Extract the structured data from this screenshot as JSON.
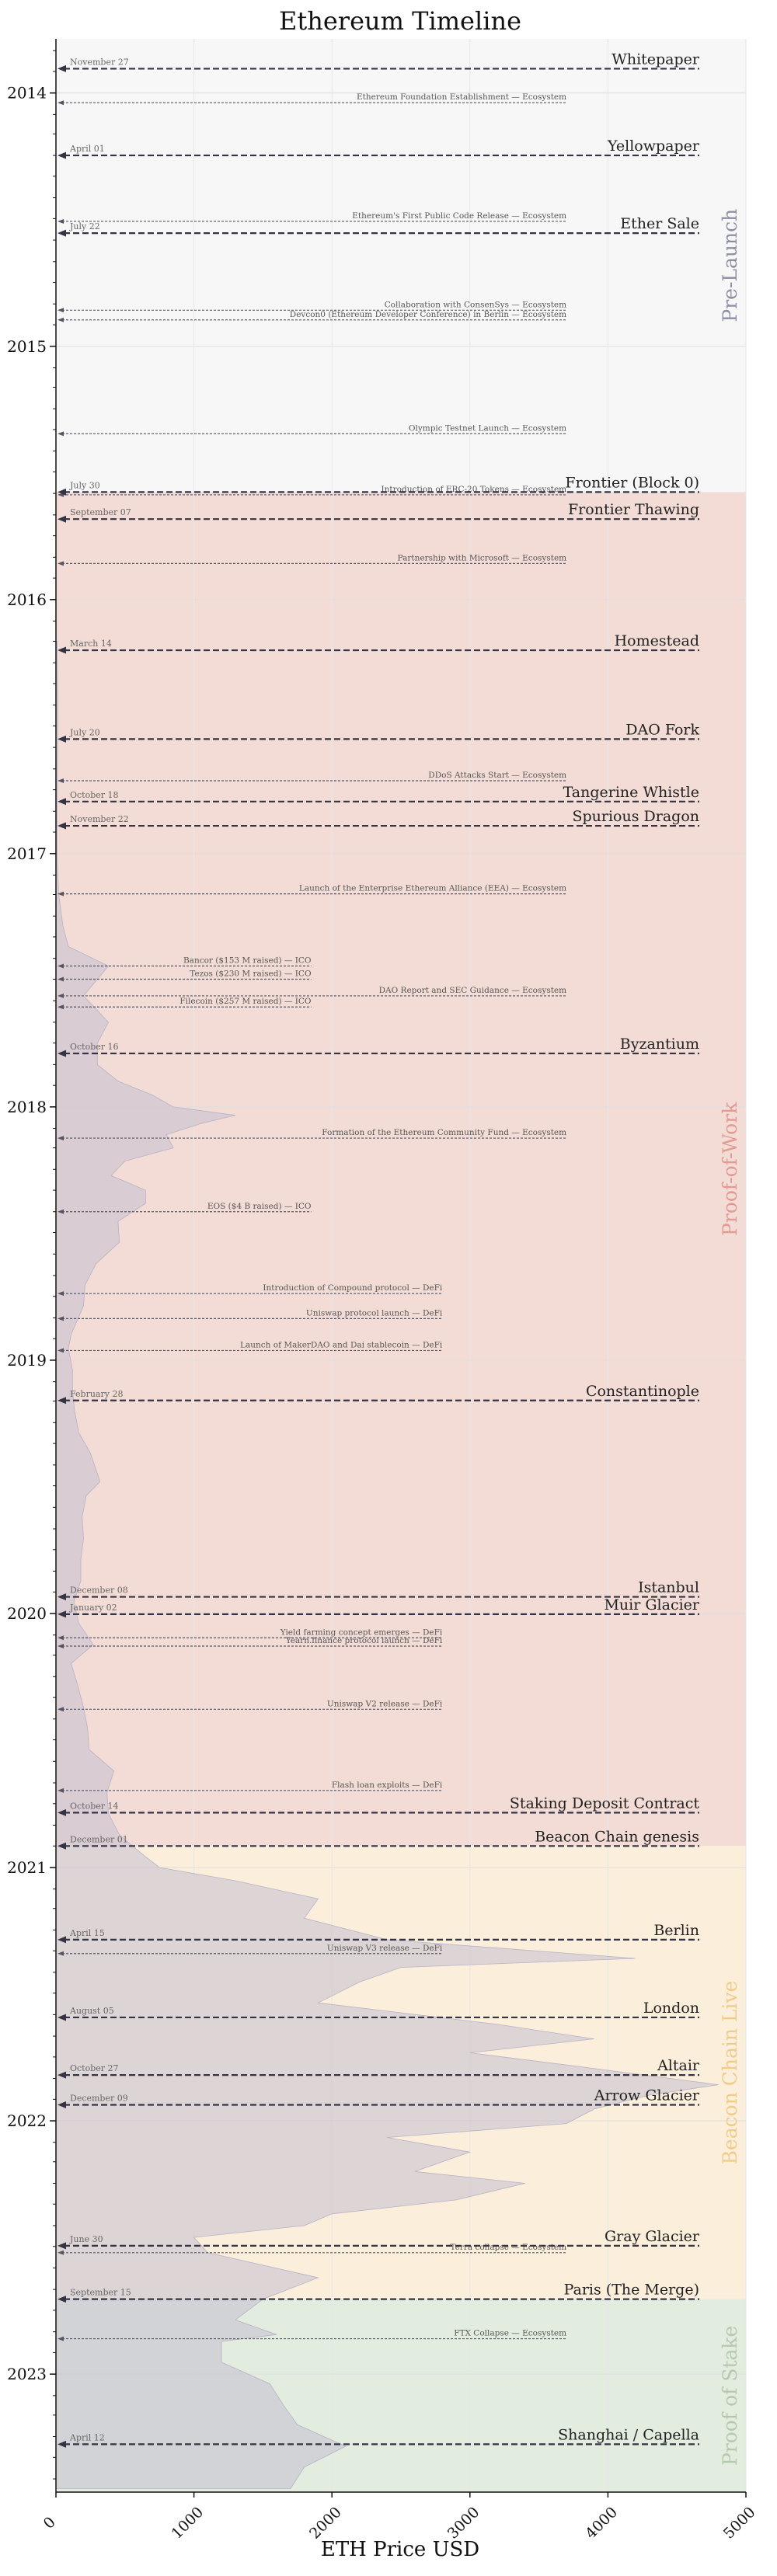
{
  "chart_data": {
    "type": "area",
    "title": "Ethereum Timeline",
    "xlabel": "ETH Price USD",
    "ylabel": "",
    "orientation": "horizontal-time-vertical",
    "xlim": [
      0,
      5000
    ],
    "ylim": [
      "2013-10-15",
      "2023-06-20"
    ],
    "x_ticks": [
      "0",
      "1000",
      "2000",
      "3000",
      "4000",
      "5000"
    ],
    "y_ticks": [
      "2014",
      "2015",
      "2016",
      "2017",
      "2018",
      "2019",
      "2020",
      "2021",
      "2022",
      "2023"
    ],
    "grid": true,
    "colors": {
      "pre_launch": "#f7f7f7",
      "proof_of_work": "#f2dcd5",
      "beacon_chain": "#fbeedb",
      "proof_of_stake": "#e2ecdf",
      "label_pre_launch": "#8e8ea4",
      "label_pow": "#e29a92",
      "label_beacon": "#f1cb8a",
      "label_pos": "#b6c9ae",
      "price_fill": "#c5c0d0",
      "line": "#333344"
    },
    "phases": [
      {
        "label": "Pre-Launch",
        "start": "2013-10-15",
        "end": "2015-07-30"
      },
      {
        "label": "Proof-of-Work",
        "start": "2015-07-30",
        "end": "2020-12-01"
      },
      {
        "label": "Beacon Chain Live",
        "start": "2020-12-01",
        "end": "2022-09-15"
      },
      {
        "label": "Proof of Stake",
        "start": "2022-09-15",
        "end": "2023-06-20"
      }
    ],
    "major_events": [
      {
        "label": "Whitepaper",
        "date_label": "November 27",
        "date": "2013-11-27"
      },
      {
        "label": "Yellowpaper",
        "date_label": "April 01",
        "date": "2014-04-01"
      },
      {
        "label": "Ether Sale",
        "date_label": "July 22",
        "date": "2014-07-22"
      },
      {
        "label": "Frontier (Block 0)",
        "date_label": "July 30",
        "date": "2015-07-30"
      },
      {
        "label": "Frontier Thawing",
        "date_label": "September 07",
        "date": "2015-09-07"
      },
      {
        "label": "Homestead",
        "date_label": "March 14",
        "date": "2016-03-14"
      },
      {
        "label": "DAO Fork",
        "date_label": "July 20",
        "date": "2016-07-20"
      },
      {
        "label": "Tangerine Whistle",
        "date_label": "October 18",
        "date": "2016-10-18"
      },
      {
        "label": "Spurious Dragon",
        "date_label": "November 22",
        "date": "2016-11-22"
      },
      {
        "label": "Byzantium",
        "date_label": "October 16",
        "date": "2017-10-16"
      },
      {
        "label": "Constantinople",
        "date_label": "February 28",
        "date": "2019-02-28"
      },
      {
        "label": "Istanbul",
        "date_label": "December 08",
        "date": "2019-12-08"
      },
      {
        "label": "Muir Glacier",
        "date_label": "January 02",
        "date": "2020-01-02"
      },
      {
        "label": "Staking Deposit Contract",
        "date_label": "October 14",
        "date": "2020-10-14"
      },
      {
        "label": "Beacon Chain genesis",
        "date_label": "December 01",
        "date": "2020-12-01"
      },
      {
        "label": "Berlin",
        "date_label": "April 15",
        "date": "2021-04-15"
      },
      {
        "label": "London",
        "date_label": "August 05",
        "date": "2021-08-05"
      },
      {
        "label": "Altair",
        "date_label": "October 27",
        "date": "2021-10-27"
      },
      {
        "label": "Arrow Glacier",
        "date_label": "December 09",
        "date": "2021-12-09"
      },
      {
        "label": "Gray Glacier",
        "date_label": "June 30",
        "date": "2022-06-30"
      },
      {
        "label": "Paris (The Merge)",
        "date_label": "September 15",
        "date": "2022-09-15"
      },
      {
        "label": "Shanghai / Capella",
        "date_label": "April 12",
        "date": "2023-04-12"
      }
    ],
    "minor_events": [
      {
        "label": "Ethereum Foundation Establishment — Ecosystem",
        "date": "2014-01-15",
        "end_x": 3700
      },
      {
        "label": "Ethereum's First Public Code Release — Ecosystem",
        "date": "2014-07-05",
        "end_x": 3700
      },
      {
        "label": "Collaboration with ConsenSys — Ecosystem",
        "date": "2014-11-10",
        "end_x": 3700
      },
      {
        "label": "Devcon0 (Ethereum Developer Conference) in Berlin — Ecosystem",
        "date": "2014-11-24",
        "end_x": 3700
      },
      {
        "label": "Olympic Testnet Launch — Ecosystem",
        "date": "2015-05-07",
        "end_x": 3700
      },
      {
        "label": "Introduction of ERC-20 Tokens — Ecosystem",
        "date": "2015-08-03",
        "end_x": 3700
      },
      {
        "label": "Partnership with Microsoft — Ecosystem",
        "date": "2015-11-10",
        "end_x": 3700
      },
      {
        "label": "DDoS Attacks Start — Ecosystem",
        "date": "2016-09-18",
        "end_x": 3700
      },
      {
        "label": "Launch of the Enterprise Ethereum Alliance (EEA) — Ecosystem",
        "date": "2017-02-28",
        "end_x": 3700
      },
      {
        "label": "Bancor ($153 M raised) — ICO",
        "date": "2017-06-12",
        "end_x": 1850
      },
      {
        "label": "Tezos ($230 M raised) — ICO",
        "date": "2017-07-01",
        "end_x": 1850
      },
      {
        "label": "DAO Report and SEC Guidance — Ecosystem",
        "date": "2017-07-25",
        "end_x": 3700
      },
      {
        "label": "Filecoin ($257 M raised) — ICO",
        "date": "2017-08-10",
        "end_x": 1850
      },
      {
        "label": "Formation of the Ethereum Community Fund — Ecosystem",
        "date": "2018-02-15",
        "end_x": 3700
      },
      {
        "label": "EOS ($4 B raised) — ICO",
        "date": "2018-06-01",
        "end_x": 1850
      },
      {
        "label": "Introduction of Compound protocol — DeFi",
        "date": "2018-09-27",
        "end_x": 2800
      },
      {
        "label": "Uniswap protocol launch — DeFi",
        "date": "2018-11-02",
        "end_x": 2800
      },
      {
        "label": "Launch of MakerDAO and Dai stablecoin — DeFi",
        "date": "2018-12-18",
        "end_x": 2800
      },
      {
        "label": "Yield farming concept emerges — DeFi",
        "date": "2020-02-05",
        "end_x": 2800
      },
      {
        "label": "Yearn.finance protocol launch — DeFi",
        "date": "2020-02-17",
        "end_x": 2800
      },
      {
        "label": "Uniswap V2 release — DeFi",
        "date": "2020-05-18",
        "end_x": 2800
      },
      {
        "label": "Flash loan exploits — DeFi",
        "date": "2020-09-12",
        "end_x": 2800
      },
      {
        "label": "Uniswap V3 release — DeFi",
        "date": "2021-05-05",
        "end_x": 2800
      },
      {
        "label": "Terra collapse — Ecosystem",
        "date": "2022-07-10",
        "end_x": 3700
      },
      {
        "label": "FTX Collapse — Ecosystem",
        "date": "2022-11-11",
        "end_x": 3700
      }
    ],
    "price_series": {
      "name": "",
      "points": [
        [
          "2016-03-01",
          8
        ],
        [
          "2016-06-01",
          14
        ],
        [
          "2016-09-01",
          12
        ],
        [
          "2016-12-01",
          8
        ],
        [
          "2017-01-15",
          10
        ],
        [
          "2017-03-01",
          20
        ],
        [
          "2017-04-15",
          50
        ],
        [
          "2017-05-15",
          90
        ],
        [
          "2017-06-12",
          380
        ],
        [
          "2017-07-01",
          300
        ],
        [
          "2017-07-25",
          200
        ],
        [
          "2017-08-15",
          300
        ],
        [
          "2017-09-01",
          380
        ],
        [
          "2017-10-01",
          300
        ],
        [
          "2017-11-01",
          300
        ],
        [
          "2017-11-25",
          450
        ],
        [
          "2017-12-15",
          700
        ],
        [
          "2018-01-01",
          850
        ],
        [
          "2018-01-13",
          1300
        ],
        [
          "2018-01-25",
          1050
        ],
        [
          "2018-02-10",
          800
        ],
        [
          "2018-03-01",
          850
        ],
        [
          "2018-03-20",
          500
        ],
        [
          "2018-04-10",
          400
        ],
        [
          "2018-05-01",
          650
        ],
        [
          "2018-05-20",
          650
        ],
        [
          "2018-06-15",
          450
        ],
        [
          "2018-07-15",
          460
        ],
        [
          "2018-08-15",
          290
        ],
        [
          "2018-09-15",
          210
        ],
        [
          "2018-10-15",
          200
        ],
        [
          "2018-11-25",
          110
        ],
        [
          "2018-12-15",
          90
        ],
        [
          "2019-01-15",
          120
        ],
        [
          "2019-02-15",
          120
        ],
        [
          "2019-03-15",
          135
        ],
        [
          "2019-04-15",
          165
        ],
        [
          "2019-05-15",
          250
        ],
        [
          "2019-06-25",
          320
        ],
        [
          "2019-07-15",
          220
        ],
        [
          "2019-08-15",
          190
        ],
        [
          "2019-09-15",
          200
        ],
        [
          "2019-10-15",
          180
        ],
        [
          "2019-11-15",
          180
        ],
        [
          "2019-12-15",
          130
        ],
        [
          "2020-01-15",
          165
        ],
        [
          "2020-02-15",
          270
        ],
        [
          "2020-03-13",
          110
        ],
        [
          "2020-04-15",
          160
        ],
        [
          "2020-05-15",
          200
        ],
        [
          "2020-06-15",
          230
        ],
        [
          "2020-07-15",
          240
        ],
        [
          "2020-08-15",
          420
        ],
        [
          "2020-09-15",
          370
        ],
        [
          "2020-10-15",
          380
        ],
        [
          "2020-11-15",
          460
        ],
        [
          "2020-12-15",
          640
        ],
        [
          "2021-01-01",
          750
        ],
        [
          "2021-01-20",
          1300
        ],
        [
          "2021-02-15",
          1900
        ],
        [
          "2021-03-15",
          1800
        ],
        [
          "2021-04-15",
          2400
        ],
        [
          "2021-05-12",
          4200
        ],
        [
          "2021-05-25",
          2500
        ],
        [
          "2021-06-15",
          2200
        ],
        [
          "2021-07-15",
          1900
        ],
        [
          "2021-08-15",
          3200
        ],
        [
          "2021-09-05",
          3900
        ],
        [
          "2021-09-25",
          3000
        ],
        [
          "2021-10-15",
          3800
        ],
        [
          "2021-11-10",
          4800
        ],
        [
          "2021-11-25",
          4300
        ],
        [
          "2021-12-15",
          3900
        ],
        [
          "2022-01-05",
          3700
        ],
        [
          "2022-01-25",
          2400
        ],
        [
          "2022-02-15",
          3000
        ],
        [
          "2022-03-15",
          2600
        ],
        [
          "2022-04-01",
          3400
        ],
        [
          "2022-04-25",
          2900
        ],
        [
          "2022-05-15",
          2000
        ],
        [
          "2022-06-01",
          1800
        ],
        [
          "2022-06-18",
          1000
        ],
        [
          "2022-07-10",
          1100
        ],
        [
          "2022-08-15",
          1900
        ],
        [
          "2022-09-15",
          1500
        ],
        [
          "2022-10-15",
          1300
        ],
        [
          "2022-11-05",
          1600
        ],
        [
          "2022-11-15",
          1200
        ],
        [
          "2022-12-15",
          1200
        ],
        [
          "2023-01-15",
          1550
        ],
        [
          "2023-02-15",
          1650
        ],
        [
          "2023-03-15",
          1750
        ],
        [
          "2023-04-15",
          2100
        ],
        [
          "2023-05-15",
          1800
        ],
        [
          "2023-06-15",
          1700
        ]
      ]
    }
  }
}
